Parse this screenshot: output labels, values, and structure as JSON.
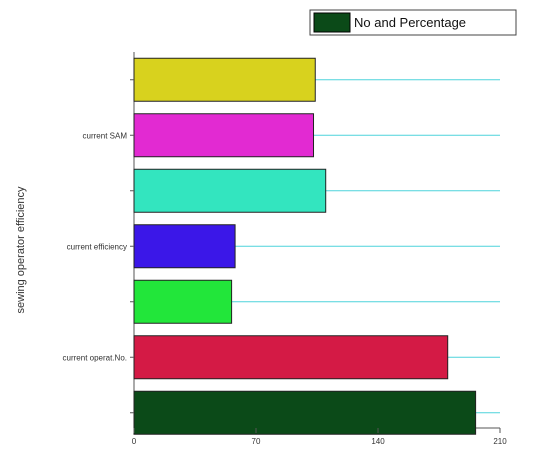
{
  "chart_data": {
    "type": "bar",
    "orientation": "horizontal",
    "title": "",
    "xlabel": "",
    "ylabel": "sewing operator efficiency",
    "xlim": [
      0,
      210
    ],
    "x_ticks": [
      "0",
      "70",
      "140",
      "210"
    ],
    "grid": "horizontal reference lines per bar",
    "legend": {
      "position": "top-right",
      "label": "No and Percentage",
      "swatch_color": "#0b4a18"
    },
    "categories": [
      "",
      "current SAM",
      "",
      "current efficiency",
      "",
      "current operat.No.",
      ""
    ],
    "series": [
      {
        "name": "No and Percentage",
        "values": [
          104,
          103,
          110,
          58,
          56,
          180,
          196
        ],
        "colors": [
          "#d8d21e",
          "#e22ad2",
          "#33e5bf",
          "#3b17e8",
          "#22e63a",
          "#d41a45",
          "#0b4a18"
        ]
      }
    ],
    "reference_line_color": "#4fd3dc"
  }
}
